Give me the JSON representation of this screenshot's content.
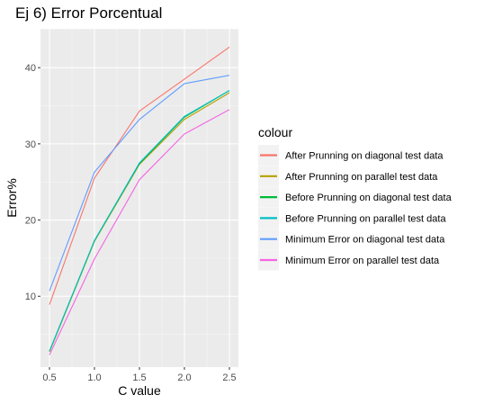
{
  "chart_data": {
    "type": "line",
    "title": "Ej 6) Error Porcentual",
    "xlabel": "C value",
    "ylabel": "Error%",
    "x": [
      0.5,
      1.0,
      1.5,
      2.0,
      2.5
    ],
    "x_tick_labels": [
      "0.5",
      "1.0",
      "1.5",
      "2.0",
      "2.5"
    ],
    "y_ticks": [
      10,
      20,
      30,
      40
    ],
    "y_tick_labels": [
      "10",
      "20",
      "30",
      "40"
    ],
    "xlim": [
      0.4,
      2.6
    ],
    "ylim": [
      0.7,
      45.1
    ],
    "grid": true,
    "legend_title": "colour",
    "legend_position": "right",
    "series": [
      {
        "name": "After Prunning on diagonal test data",
        "color": "#F8766D",
        "values": [
          8.9,
          25.5,
          34.3,
          38.5,
          42.7
        ]
      },
      {
        "name": "After Prunning on parallel test data",
        "color": "#B79F00",
        "values": [
          2.7,
          17.2,
          27.3,
          33.2,
          36.7
        ]
      },
      {
        "name": "Before Prunning on diagonal test data",
        "color": "#00BA38",
        "values": [
          2.8,
          17.3,
          27.4,
          33.5,
          37.0
        ]
      },
      {
        "name": "Before Prunning on parallel test data",
        "color": "#00BFC4",
        "values": [
          2.8,
          17.3,
          27.5,
          33.6,
          37.0
        ]
      },
      {
        "name": "Minimum Error on diagonal test data",
        "color": "#619CFF",
        "values": [
          10.7,
          26.3,
          33.2,
          37.9,
          39.0
        ]
      },
      {
        "name": "Minimum Error on parallel test data",
        "color": "#F564E3",
        "values": [
          2.3,
          14.9,
          25.3,
          31.3,
          34.5
        ]
      }
    ]
  }
}
